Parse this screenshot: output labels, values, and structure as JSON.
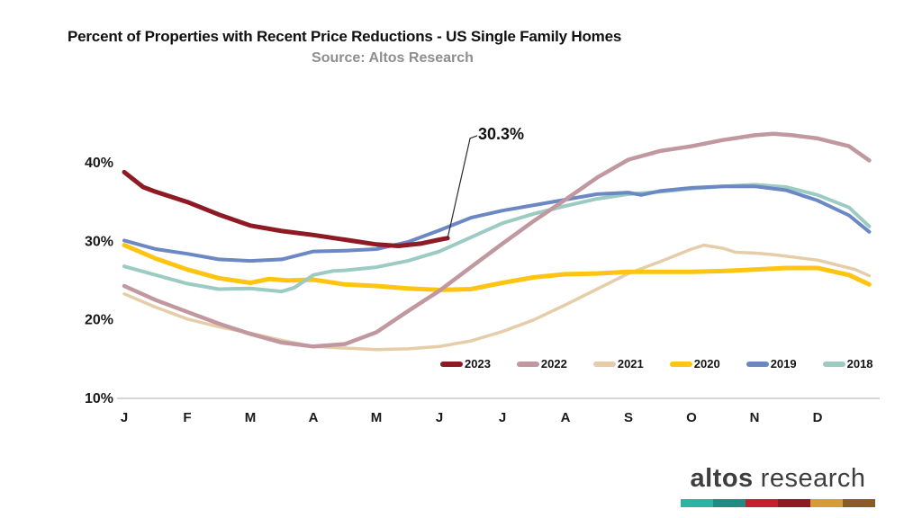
{
  "chart_data": {
    "type": "line",
    "title": "Percent of Properties with Recent Price Reductions - US Single Family Homes",
    "subtitle": "Source: Altos Research",
    "grid": false,
    "legend_position": "bottom-inside",
    "x_axis": {
      "categories": [
        "J",
        "F",
        "M",
        "A",
        "M",
        "J",
        "J",
        "A",
        "S",
        "O",
        "N",
        "D"
      ]
    },
    "y_axis": {
      "unit": "%",
      "ylim": [
        10,
        45
      ],
      "ticks": [
        {
          "value": 40,
          "label": "40%"
        },
        {
          "value": 30,
          "label": "30%"
        },
        {
          "value": 20,
          "label": "20%"
        },
        {
          "value": 10,
          "label": "10%"
        }
      ]
    },
    "series": [
      {
        "name": "2023",
        "color": "#8e1b23",
        "x": [
          0,
          0.3,
          0.5,
          1,
          1.5,
          2,
          2.5,
          3,
          3.5,
          4,
          4.35,
          4.7,
          5.0,
          5.13
        ],
        "values": [
          38.7,
          36.8,
          36.2,
          34.9,
          33.3,
          31.9,
          31.2,
          30.7,
          30.1,
          29.5,
          29.3,
          29.6,
          30.1,
          30.3
        ]
      },
      {
        "name": "2022",
        "color": "#c298a0",
        "x": [
          0,
          0.5,
          1,
          1.5,
          2,
          2.5,
          3,
          3.5,
          4,
          4.5,
          5,
          5.5,
          6,
          6.5,
          7,
          7.5,
          8,
          8.5,
          9,
          9.5,
          10,
          10.3,
          10.6,
          11,
          11.5,
          11.82
        ],
        "values": [
          24.2,
          22.4,
          20.9,
          19.4,
          18.1,
          17.0,
          16.5,
          16.8,
          18.3,
          21.0,
          23.6,
          26.6,
          29.6,
          32.5,
          35.2,
          38.0,
          40.3,
          41.4,
          42.0,
          42.8,
          43.4,
          43.6,
          43.4,
          43.0,
          42.0,
          40.2
        ]
      },
      {
        "name": "2021",
        "color": "#e5cda9",
        "x": [
          0,
          0.5,
          1,
          1.5,
          2,
          2.5,
          3,
          3.5,
          4,
          4.5,
          5,
          5.5,
          6,
          6.5,
          7,
          7.5,
          8,
          8.5,
          9,
          9.2,
          9.5,
          9.7,
          10,
          10.3,
          10.7,
          11,
          11.3,
          11.6,
          11.82
        ],
        "values": [
          23.2,
          21.5,
          20.0,
          19.0,
          18.2,
          17.3,
          16.5,
          16.3,
          16.1,
          16.2,
          16.5,
          17.2,
          18.4,
          19.9,
          21.8,
          23.8,
          25.8,
          27.3,
          28.9,
          29.4,
          29.0,
          28.5,
          28.4,
          28.2,
          27.8,
          27.5,
          26.9,
          26.3,
          25.5
        ]
      },
      {
        "name": "2020",
        "color": "#fdc411",
        "x": [
          0,
          0.5,
          1,
          1.5,
          2,
          2.3,
          2.6,
          3,
          3.5,
          4,
          4.5,
          5,
          5.5,
          6,
          6.5,
          7,
          7.5,
          8,
          8.5,
          9,
          9.5,
          10,
          10.5,
          11,
          11.5,
          11.82
        ],
        "values": [
          29.4,
          27.7,
          26.3,
          25.2,
          24.6,
          25.1,
          24.9,
          25.0,
          24.4,
          24.2,
          23.9,
          23.7,
          23.8,
          24.6,
          25.3,
          25.7,
          25.8,
          26.0,
          26.0,
          26.0,
          26.1,
          26.3,
          26.5,
          26.5,
          25.6,
          24.4
        ]
      },
      {
        "name": "2019",
        "color": "#6b87c4",
        "x": [
          0,
          0.5,
          1,
          1.5,
          2,
          2.5,
          3,
          3.5,
          4,
          4.5,
          5,
          5.5,
          6,
          6.5,
          7,
          7.5,
          8,
          8.2,
          8.5,
          9,
          9.5,
          10,
          10.5,
          11,
          11.5,
          11.82
        ],
        "values": [
          30.0,
          28.9,
          28.3,
          27.6,
          27.4,
          27.6,
          28.6,
          28.7,
          28.9,
          29.8,
          31.3,
          32.9,
          33.8,
          34.5,
          35.2,
          35.9,
          36.1,
          35.8,
          36.3,
          36.7,
          36.9,
          36.9,
          36.4,
          35.1,
          33.2,
          31.1
        ]
      },
      {
        "name": "2018",
        "color": "#9bcbc2",
        "x": [
          0,
          0.5,
          1,
          1.5,
          2,
          2.5,
          2.7,
          3,
          3.3,
          3.5,
          4,
          4.5,
          5,
          5.5,
          6,
          6.5,
          7,
          7.5,
          8,
          8.5,
          9,
          9.5,
          10,
          10.5,
          11,
          11.5,
          11.82
        ],
        "values": [
          26.7,
          25.6,
          24.5,
          23.8,
          23.9,
          23.5,
          24.0,
          25.6,
          26.1,
          26.2,
          26.6,
          27.4,
          28.6,
          30.4,
          32.2,
          33.4,
          34.4,
          35.3,
          35.9,
          36.2,
          36.6,
          36.9,
          37.1,
          36.8,
          35.8,
          34.2,
          31.8
        ]
      }
    ],
    "annotation": {
      "text": "30.3%",
      "series": "2023",
      "month_x": 5.13,
      "value": 30.3
    }
  },
  "logo": {
    "words": [
      "altos",
      "research"
    ],
    "text_color": "#3e3e3e",
    "bar_colors": [
      "#2db3a2",
      "#1f8b83",
      "#c2202e",
      "#8e1b23",
      "#d69a39",
      "#8a5a27"
    ]
  }
}
